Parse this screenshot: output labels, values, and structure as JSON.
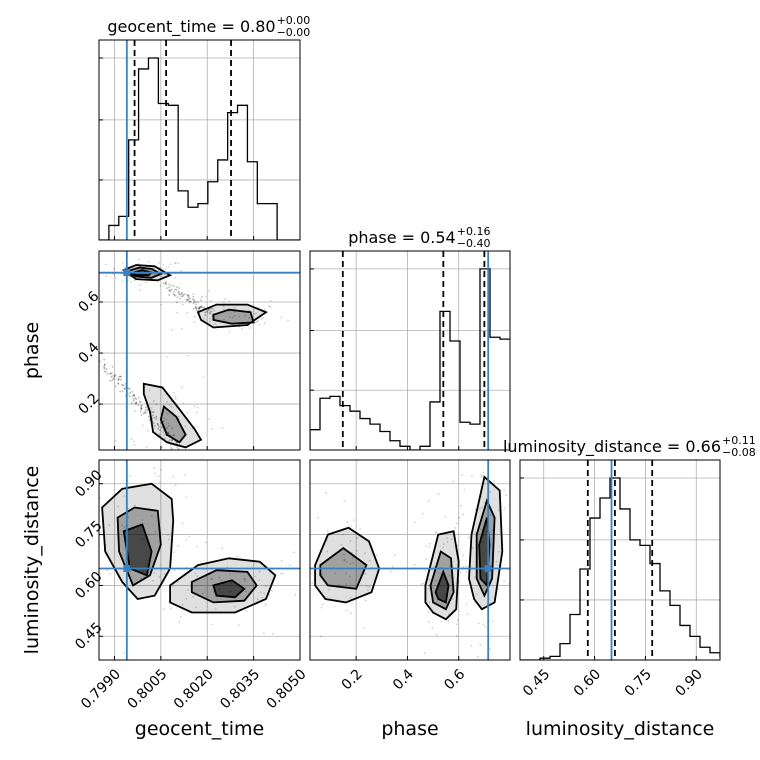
{
  "chart_data": {
    "type": "corner",
    "parameters": [
      "geocent_time",
      "phase",
      "luminosity_distance"
    ],
    "truth": {
      "geocent_time": 0.7994,
      "phase": 0.715,
      "luminosity_distance": 0.65
    },
    "colors": {
      "truth": "#3a7fbf",
      "hist": "#000000",
      "grid": "#b0b0b0"
    },
    "titles": [
      {
        "param": "geocent_time",
        "text": "geocent_time = 0.80",
        "sup": "+0.00",
        "sub": "−0.00"
      },
      {
        "param": "phase",
        "text": "phase = 0.54",
        "sup": "+0.16",
        "sub": "−0.40"
      },
      {
        "param": "luminosity_distance",
        "text": "luminosity_distance = 0.66",
        "sup": "+0.11",
        "sub": "−0.08"
      }
    ],
    "axes": {
      "geocent_time": {
        "range": [
          0.7985,
          0.805
        ],
        "ticks": [
          0.799,
          0.8005,
          0.802,
          0.8035,
          0.805
        ],
        "tick_labels": [
          "0.7990",
          "0.8005",
          "0.8020",
          "0.8035",
          "0.8050"
        ],
        "label": "geocent_time"
      },
      "phase": {
        "range": [
          0.02,
          0.8
        ],
        "ticks": [
          0.2,
          0.4,
          0.6
        ],
        "tick_labels": [
          "0.2",
          "0.4",
          "0.6"
        ],
        "label": "phase"
      },
      "luminosity_distance": {
        "range": [
          0.38,
          0.97
        ],
        "ticks": [
          0.45,
          0.6,
          0.75,
          0.9
        ],
        "tick_labels": [
          "0.45",
          "0.60",
          "0.75",
          "0.90"
        ],
        "label": "luminosity_distance"
      }
    },
    "histograms": {
      "geocent_time": {
        "bin_start": 0.7985,
        "bin_width": 0.00032,
        "counts": [
          0,
          0.08,
          0.13,
          0.55,
          0.94,
          1.0,
          0.75,
          0.74,
          0.27,
          0.18,
          0.2,
          0.32,
          0.44,
          0.7,
          0.74,
          0.43,
          0.2,
          0.2,
          0,
          0,
          0
        ],
        "quantiles": [
          0.79965,
          0.80067,
          0.80277
        ]
      },
      "phase": {
        "bin_start": 0.02,
        "bin_width": 0.039,
        "counts": [
          0.11,
          0.28,
          0.29,
          0.24,
          0.21,
          0.17,
          0.14,
          0.1,
          0.05,
          0.02,
          0,
          0.02,
          0.26,
          0.75,
          0.59,
          0.15,
          0.14,
          0.98,
          0.61,
          0.6
        ],
        "quantiles": [
          0.148,
          0.54,
          0.7
        ]
      },
      "luminosity_distance": {
        "bin_start": 0.38,
        "bin_width": 0.0295,
        "counts": [
          0,
          0,
          0.01,
          0.02,
          0.09,
          0.25,
          0.5,
          0.78,
          0.89,
          1.0,
          0.83,
          0.66,
          0.63,
          0.53,
          0.38,
          0.3,
          0.19,
          0.13,
          0.07,
          0.04,
          0.02
        ],
        "quantiles": [
          0.58,
          0.66,
          0.77
        ]
      }
    },
    "contours_2d": {
      "phase_vs_geocent_time": [
        {
          "level": 1,
          "x": [
            0.7993,
            0.7997,
            0.8003,
            0.8008,
            0.8004,
            0.7997
          ],
          "y": [
            0.725,
            0.745,
            0.74,
            0.705,
            0.685,
            0.69
          ]
        },
        {
          "level": 2,
          "x": [
            0.7994,
            0.7998,
            0.8002,
            0.8005,
            0.8002,
            0.7997
          ],
          "y": [
            0.72,
            0.735,
            0.73,
            0.71,
            0.695,
            0.7
          ]
        },
        {
          "level": 3,
          "x": [
            0.7996,
            0.7999,
            0.8002,
            0.8001,
            0.7997
          ],
          "y": [
            0.715,
            0.725,
            0.715,
            0.705,
            0.705
          ]
        },
        {
          "level": 1,
          "x": [
            0.8017,
            0.8023,
            0.8033,
            0.8039,
            0.8033,
            0.8022,
            0.8018
          ],
          "y": [
            0.56,
            0.59,
            0.59,
            0.56,
            0.51,
            0.5,
            0.53
          ]
        },
        {
          "level": 2,
          "x": [
            0.8022,
            0.8027,
            0.8034,
            0.8035,
            0.8028,
            0.8022
          ],
          "y": [
            0.55,
            0.57,
            0.56,
            0.52,
            0.515,
            0.53
          ]
        },
        {
          "level": 1,
          "x": [
            0.79995,
            0.80055,
            0.8011,
            0.8016,
            0.8018,
            0.8013,
            0.8007,
            0.80025,
            0.80015,
            0.79995
          ],
          "y": [
            0.28,
            0.265,
            0.18,
            0.1,
            0.06,
            0.03,
            0.05,
            0.09,
            0.17,
            0.24
          ]
        },
        {
          "level": 2,
          "x": [
            0.8006,
            0.801,
            0.8013,
            0.8011,
            0.8007,
            0.8005
          ],
          "y": [
            0.19,
            0.15,
            0.08,
            0.05,
            0.08,
            0.14
          ]
        }
      ],
      "luminosity_distance_vs_geocent_time": [
        {
          "level": 1,
          "x": [
            0.7986,
            0.79925,
            0.8002,
            0.80085,
            0.8009,
            0.8008,
            0.8003,
            0.79975,
            0.79925,
            0.7987
          ],
          "y": [
            0.83,
            0.885,
            0.9,
            0.855,
            0.79,
            0.65,
            0.57,
            0.56,
            0.61,
            0.7
          ]
        },
        {
          "level": 2,
          "x": [
            0.7991,
            0.79965,
            0.8004,
            0.8005,
            0.80015,
            0.7996,
            0.79915
          ],
          "y": [
            0.8,
            0.83,
            0.82,
            0.72,
            0.63,
            0.6,
            0.7
          ]
        },
        {
          "level": 3,
          "x": [
            0.7993,
            0.7999,
            0.8002,
            0.80005,
            0.7995
          ],
          "y": [
            0.76,
            0.78,
            0.7,
            0.63,
            0.65
          ]
        },
        {
          "level": 1,
          "x": [
            0.8008,
            0.8017,
            0.8027,
            0.8037,
            0.8042,
            0.8039,
            0.8029,
            0.8015,
            0.8008
          ],
          "y": [
            0.6,
            0.66,
            0.68,
            0.67,
            0.63,
            0.56,
            0.52,
            0.52,
            0.55
          ]
        },
        {
          "level": 2,
          "x": [
            0.8015,
            0.8023,
            0.8033,
            0.8036,
            0.8032,
            0.8022,
            0.8015
          ],
          "y": [
            0.61,
            0.645,
            0.64,
            0.6,
            0.555,
            0.55,
            0.58
          ]
        },
        {
          "level": 3,
          "x": [
            0.8022,
            0.8028,
            0.8032,
            0.8029,
            0.8023
          ],
          "y": [
            0.6,
            0.615,
            0.59,
            0.565,
            0.57
          ]
        }
      ],
      "luminosity_distance_vs_phase": [
        {
          "level": 1,
          "x": [
            0.04,
            0.09,
            0.17,
            0.25,
            0.29,
            0.26,
            0.16,
            0.08,
            0.04
          ],
          "y": [
            0.66,
            0.75,
            0.77,
            0.73,
            0.65,
            0.58,
            0.55,
            0.56,
            0.6
          ]
        },
        {
          "level": 2,
          "x": [
            0.06,
            0.15,
            0.24,
            0.2,
            0.09,
            0.06
          ],
          "y": [
            0.66,
            0.71,
            0.66,
            0.59,
            0.6,
            0.63
          ]
        },
        {
          "level": 1,
          "x": [
            0.47,
            0.52,
            0.58,
            0.6,
            0.59,
            0.55,
            0.5,
            0.47
          ],
          "y": [
            0.6,
            0.75,
            0.76,
            0.67,
            0.53,
            0.5,
            0.52,
            0.55
          ]
        },
        {
          "level": 2,
          "x": [
            0.49,
            0.53,
            0.57,
            0.58,
            0.55,
            0.5
          ],
          "y": [
            0.6,
            0.7,
            0.68,
            0.58,
            0.53,
            0.55
          ]
        },
        {
          "level": 3,
          "x": [
            0.51,
            0.54,
            0.56,
            0.55,
            0.52
          ],
          "y": [
            0.58,
            0.64,
            0.6,
            0.55,
            0.56
          ]
        },
        {
          "level": 1,
          "x": [
            0.65,
            0.7,
            0.76,
            0.77,
            0.74,
            0.69,
            0.66,
            0.64
          ],
          "y": [
            0.75,
            0.92,
            0.88,
            0.7,
            0.55,
            0.53,
            0.56,
            0.62
          ]
        },
        {
          "level": 2,
          "x": [
            0.67,
            0.71,
            0.74,
            0.73,
            0.7,
            0.67
          ],
          "y": [
            0.75,
            0.85,
            0.8,
            0.62,
            0.57,
            0.62
          ]
        },
        {
          "level": 3,
          "x": [
            0.68,
            0.71,
            0.72,
            0.71,
            0.685
          ],
          "y": [
            0.72,
            0.8,
            0.72,
            0.6,
            0.62
          ]
        }
      ]
    }
  }
}
